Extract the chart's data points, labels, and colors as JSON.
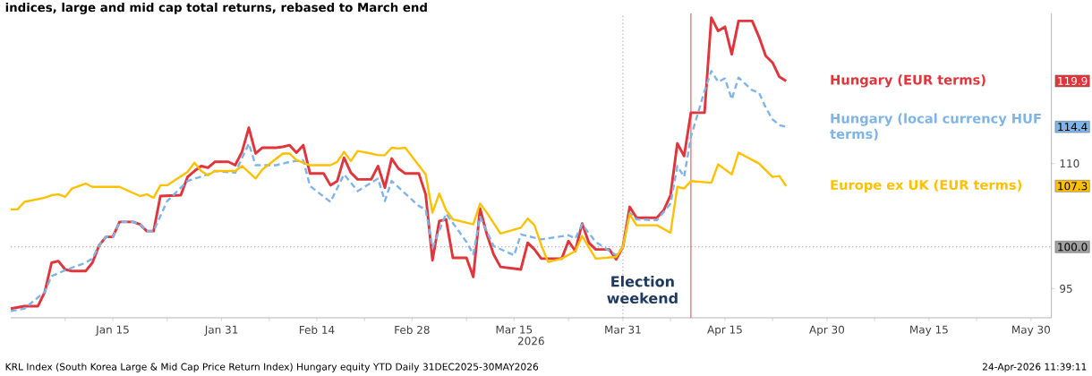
{
  "chart_data": {
    "type": "line",
    "title": "indices, large and mid cap total returns, rebased to March end",
    "xlabel": "2026",
    "xlim": [
      "2025-12-31",
      "2026-06-02"
    ],
    "xticks": [
      {
        "value": "2026-01-08",
        "label": null
      },
      {
        "value": "2026-01-15",
        "label": "Jan 15"
      },
      {
        "value": "2026-01-23",
        "label": null
      },
      {
        "value": "2026-01-31",
        "label": "Jan 31"
      },
      {
        "value": "2026-02-07",
        "label": null
      },
      {
        "value": "2026-02-14",
        "label": "Feb 14"
      },
      {
        "value": "2026-02-21",
        "label": null
      },
      {
        "value": "2026-02-28",
        "label": "Feb 28"
      },
      {
        "value": "2026-03-08",
        "label": null
      },
      {
        "value": "2026-03-15",
        "label": "Mar 15"
      },
      {
        "value": "2026-03-23",
        "label": null
      },
      {
        "value": "2026-03-31",
        "label": "Mar 31"
      },
      {
        "value": "2026-04-07",
        "label": null
      },
      {
        "value": "2026-04-15",
        "label": "Apr 15"
      },
      {
        "value": "2026-04-22",
        "label": null
      },
      {
        "value": "2026-04-30",
        "label": "Apr 30"
      },
      {
        "value": "2026-05-07",
        "label": null
      },
      {
        "value": "2026-05-15",
        "label": "May 15"
      },
      {
        "value": "2026-05-22",
        "label": null
      },
      {
        "value": "2026-05-30",
        "label": "May 30"
      }
    ],
    "ylim": [
      91.5,
      128
    ],
    "yticks": [
      95,
      110
    ],
    "legend": "right",
    "grid": false,
    "marker": "none",
    "series": [
      {
        "name": "Hungary (EUR terms)",
        "color": "#e0353b",
        "line_style": "solid",
        "x": [
          "2025-12-31",
          "2026-01-02",
          "2026-01-04",
          "2026-01-05",
          "2026-01-06",
          "2026-01-07",
          "2026-01-08",
          "2026-01-09",
          "2026-01-11",
          "2026-01-12",
          "2026-01-13",
          "2026-01-14",
          "2026-01-15",
          "2026-01-16",
          "2026-01-18",
          "2026-01-19",
          "2026-01-20",
          "2026-01-21",
          "2026-01-22",
          "2026-01-25",
          "2026-01-26",
          "2026-01-27",
          "2026-01-28",
          "2026-01-29",
          "2026-01-30",
          "2026-02-01",
          "2026-02-02",
          "2026-02-03",
          "2026-02-04",
          "2026-02-05",
          "2026-02-06",
          "2026-02-08",
          "2026-02-09",
          "2026-02-10",
          "2026-02-11",
          "2026-02-12",
          "2026-02-13",
          "2026-02-15",
          "2026-02-16",
          "2026-02-17",
          "2026-02-18",
          "2026-02-19",
          "2026-02-20",
          "2026-02-22",
          "2026-02-23",
          "2026-02-24",
          "2026-02-25",
          "2026-02-26",
          "2026-02-27",
          "2026-03-01",
          "2026-03-02",
          "2026-03-03",
          "2026-03-04",
          "2026-03-05",
          "2026-03-06",
          "2026-03-08",
          "2026-03-09",
          "2026-03-10",
          "2026-03-11",
          "2026-03-12",
          "2026-03-13",
          "2026-03-15",
          "2026-03-16",
          "2026-03-17",
          "2026-03-18",
          "2026-03-19",
          "2026-03-22",
          "2026-03-23",
          "2026-03-24",
          "2026-03-25",
          "2026-03-26",
          "2026-03-27",
          "2026-03-29",
          "2026-03-30",
          "2026-03-31",
          "2026-04-01",
          "2026-04-02",
          "2026-04-05",
          "2026-04-06",
          "2026-04-07",
          "2026-04-08",
          "2026-04-09",
          "2026-04-10",
          "2026-04-12",
          "2026-04-13",
          "2026-04-14",
          "2026-04-15",
          "2026-04-16",
          "2026-04-17",
          "2026-04-19",
          "2026-04-20",
          "2026-04-21",
          "2026-04-22",
          "2026-04-23",
          "2026-04-24"
        ],
        "values": [
          92.6,
          92.9,
          92.9,
          94.6,
          98.1,
          98.3,
          97.3,
          97.1,
          97.1,
          98.1,
          100.2,
          101.2,
          101.2,
          103.0,
          103.0,
          102.7,
          101.9,
          101.9,
          106.1,
          106.2,
          108.4,
          109.1,
          109.7,
          109.5,
          110.2,
          110.2,
          109.8,
          111.4,
          114.3,
          111.2,
          111.9,
          111.9,
          112.0,
          112.2,
          111.3,
          112.2,
          108.8,
          108.8,
          107.4,
          107.9,
          110.7,
          108.9,
          108.1,
          108.1,
          109.7,
          107.1,
          110.6,
          109.4,
          108.8,
          108.8,
          106.3,
          98.4,
          103.1,
          103.3,
          98.7,
          98.7,
          96.4,
          104.6,
          101.5,
          99.1,
          97.6,
          97.4,
          97.3,
          100.5,
          99.7,
          98.6,
          98.6,
          100.7,
          99.5,
          102.8,
          100.5,
          99.7,
          99.7,
          98.5,
          100.0,
          104.8,
          103.5,
          103.5,
          104.4,
          106.2,
          112.4,
          110.9,
          116.1,
          116.1,
          127.5,
          125.9,
          126.4,
          123.1,
          127.1,
          127.1,
          125.2,
          122.9,
          122.1,
          120.4,
          119.9
        ]
      },
      {
        "name": "Hungary (local currency HUF terms)",
        "color": "#7eb4e8",
        "line_style": "dashed",
        "x": [
          "2025-12-31",
          "2026-01-02",
          "2026-01-05",
          "2026-01-06",
          "2026-01-08",
          "2026-01-11",
          "2026-01-12",
          "2026-01-13",
          "2026-01-14",
          "2026-01-15",
          "2026-01-16",
          "2026-01-18",
          "2026-01-19",
          "2026-01-20",
          "2026-01-21",
          "2026-01-23",
          "2026-01-26",
          "2026-01-29",
          "2026-01-30",
          "2026-02-02",
          "2026-02-04",
          "2026-02-05",
          "2026-02-08",
          "2026-02-10",
          "2026-02-12",
          "2026-02-13",
          "2026-02-16",
          "2026-02-18",
          "2026-02-20",
          "2026-02-23",
          "2026-02-24",
          "2026-02-25",
          "2026-03-01",
          "2026-03-02",
          "2026-03-03",
          "2026-03-05",
          "2026-03-08",
          "2026-03-09",
          "2026-03-10",
          "2026-03-12",
          "2026-03-15",
          "2026-03-16",
          "2026-03-19",
          "2026-03-23",
          "2026-03-24",
          "2026-03-25",
          "2026-03-27",
          "2026-03-30",
          "2026-03-31",
          "2026-04-01",
          "2026-04-02",
          "2026-04-05",
          "2026-04-07",
          "2026-04-08",
          "2026-04-09",
          "2026-04-10",
          "2026-04-12",
          "2026-04-13",
          "2026-04-14",
          "2026-04-15",
          "2026-04-16",
          "2026-04-17",
          "2026-04-19",
          "2026-04-20",
          "2026-04-21",
          "2026-04-22",
          "2026-04-23",
          "2026-04-24"
        ],
        "values": [
          92.3,
          92.6,
          94.6,
          96.5,
          97.2,
          98.1,
          98.6,
          100.2,
          101.2,
          101.2,
          103.0,
          103.0,
          102.7,
          101.9,
          101.9,
          105.5,
          107.9,
          108.7,
          109.1,
          108.9,
          112.4,
          109.8,
          109.8,
          110.2,
          110.4,
          107.3,
          105.4,
          108.7,
          106.7,
          108.2,
          105.5,
          107.9,
          104.9,
          104.5,
          99.9,
          104.0,
          100.6,
          99.1,
          103.6,
          100.1,
          99.0,
          101.5,
          100.9,
          101.4,
          101.0,
          102.7,
          100.6,
          99.0,
          100.0,
          104.1,
          103.3,
          103.2,
          105.2,
          109.7,
          108.4,
          113.2,
          118.7,
          121.1,
          119.8,
          120.2,
          117.7,
          120.3,
          118.8,
          118.5,
          116.7,
          115.3,
          114.6,
          114.4
        ]
      },
      {
        "name": "Europe ex UK (EUR terms)",
        "color": "#ffc000",
        "line_style": "solid",
        "x": [
          "2025-12-31",
          "2026-01-01",
          "2026-01-02",
          "2026-01-05",
          "2026-01-06",
          "2026-01-07",
          "2026-01-08",
          "2026-01-09",
          "2026-01-11",
          "2026-01-12",
          "2026-01-16",
          "2026-01-19",
          "2026-01-20",
          "2026-01-21",
          "2026-01-22",
          "2026-01-23",
          "2026-01-26",
          "2026-01-27",
          "2026-01-28",
          "2026-01-29",
          "2026-01-30",
          "2026-02-02",
          "2026-02-03",
          "2026-02-05",
          "2026-02-06",
          "2026-02-09",
          "2026-02-10",
          "2026-02-11",
          "2026-02-13",
          "2026-02-16",
          "2026-02-17",
          "2026-02-18",
          "2026-02-19",
          "2026-02-20",
          "2026-02-22",
          "2026-02-23",
          "2026-02-24",
          "2026-02-25",
          "2026-02-26",
          "2026-02-27",
          "2026-03-02",
          "2026-03-03",
          "2026-03-04",
          "2026-03-05",
          "2026-03-06",
          "2026-03-09",
          "2026-03-10",
          "2026-03-11",
          "2026-03-13",
          "2026-03-16",
          "2026-03-17",
          "2026-03-18",
          "2026-03-19",
          "2026-03-20",
          "2026-03-22",
          "2026-03-24",
          "2026-03-25",
          "2026-03-27",
          "2026-03-30",
          "2026-03-31",
          "2026-04-01",
          "2026-04-02",
          "2026-04-05",
          "2026-04-07",
          "2026-04-08",
          "2026-04-09",
          "2026-04-10",
          "2026-04-13",
          "2026-04-14",
          "2026-04-16",
          "2026-04-17",
          "2026-04-20",
          "2026-04-22",
          "2026-04-23",
          "2026-04-24"
        ],
        "values": [
          104.5,
          104.5,
          105.4,
          105.9,
          106.2,
          106.3,
          106.0,
          107.0,
          107.6,
          107.2,
          107.2,
          106.1,
          106.3,
          105.9,
          107.4,
          107.4,
          109.0,
          110.1,
          109.1,
          108.6,
          109.1,
          109.1,
          109.7,
          108.2,
          109.3,
          111.2,
          111.2,
          110.4,
          109.8,
          109.8,
          110.2,
          111.4,
          110.3,
          111.5,
          111.2,
          111.0,
          111.0,
          111.9,
          111.8,
          111.9,
          108.7,
          104.1,
          106.4,
          104.4,
          103.3,
          102.7,
          105.2,
          104.1,
          101.6,
          102.3,
          103.4,
          102.6,
          100.2,
          98.2,
          98.6,
          99.5,
          101.3,
          98.6,
          98.8,
          100.0,
          103.9,
          102.6,
          102.6,
          101.7,
          107.2,
          107.0,
          107.9,
          107.7,
          109.9,
          108.7,
          111.3,
          110.0,
          108.4,
          108.5,
          107.3
        ]
      }
    ],
    "ref_lines": [
      {
        "axis": "y",
        "value": 100,
        "label": "100.0",
        "color": "#a0a0a0",
        "line_style": "dotted"
      },
      {
        "axis": "x",
        "value": "2026-03-31",
        "color": "#a0a0a0",
        "line_style": "dotted"
      },
      {
        "axis": "x",
        "value": "2026-04-10",
        "label": "Election weekend",
        "color": "#e0353b",
        "line_style": "solid"
      }
    ],
    "annotations": [
      "119.9",
      "114.4",
      "107.3",
      "KRL Index (South Korea Large & Mid Cap Price Return Index) Hungary equity YTD Daily 31DEC2025-30MAY2026",
      "24-Apr-2026 11:39:11"
    ]
  }
}
